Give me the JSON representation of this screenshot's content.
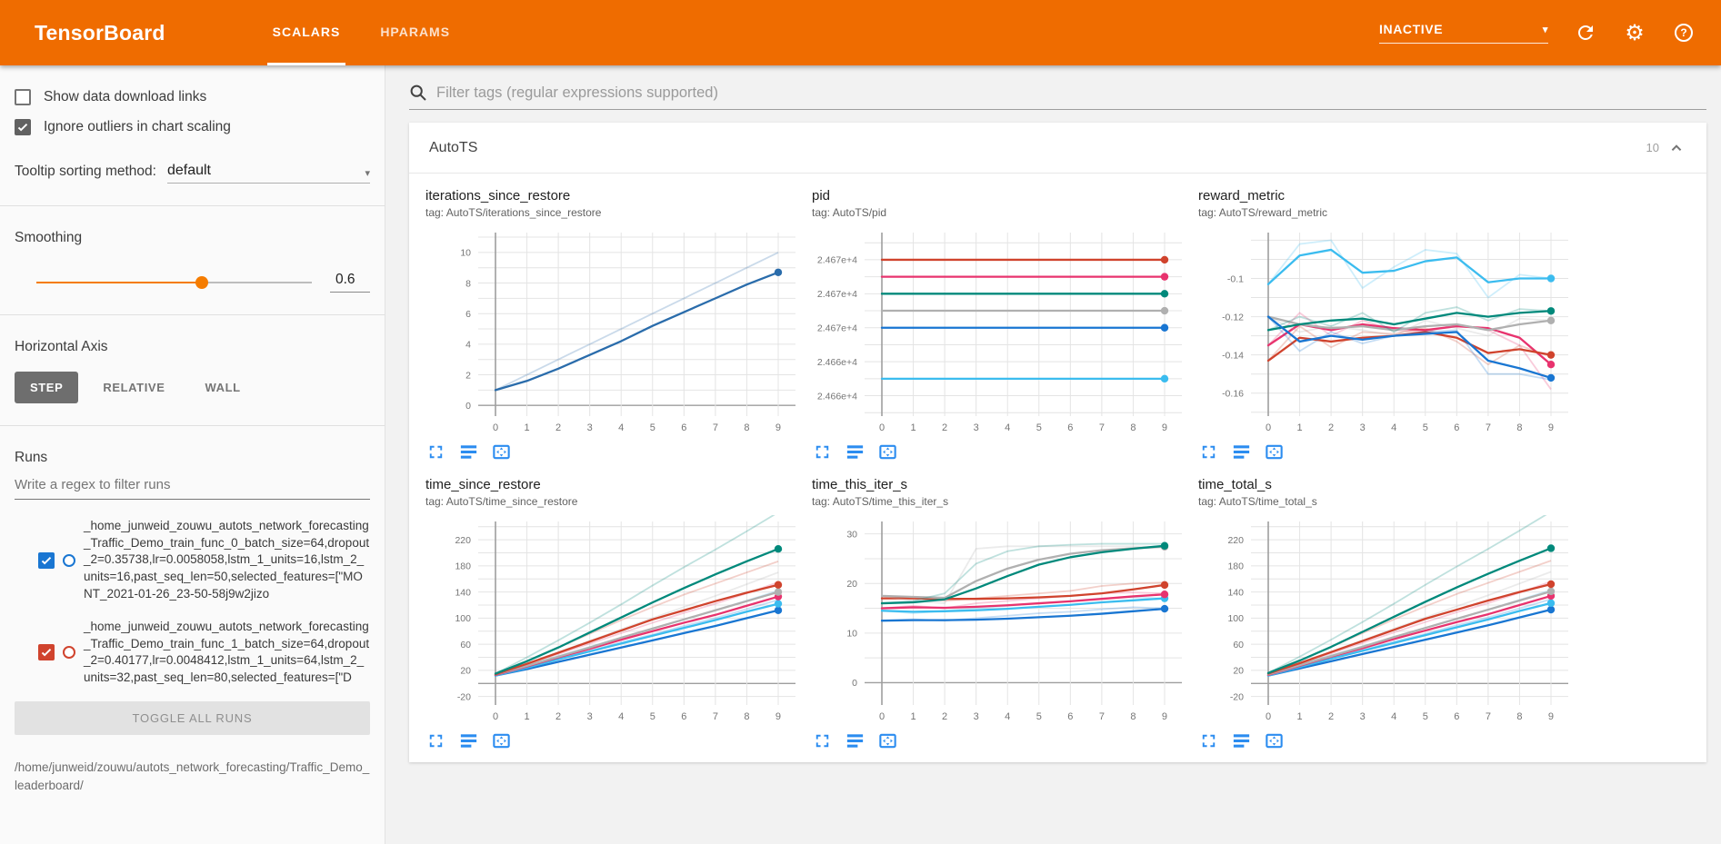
{
  "header": {
    "title": "TensorBoard",
    "tabs": [
      {
        "label": "SCALARS",
        "active": true
      },
      {
        "label": "HPARAMS",
        "active": false
      }
    ],
    "status": "INACTIVE",
    "accent_color": "#ef6c00"
  },
  "sidebar": {
    "checkboxes": [
      {
        "label": "Show data download links",
        "checked": false
      },
      {
        "label": "Ignore outliers in chart scaling",
        "checked": true
      }
    ],
    "tooltip": {
      "label": "Tooltip sorting method:",
      "value": "default"
    },
    "smoothing": {
      "label": "Smoothing",
      "value": "0.6",
      "fraction": 0.6
    },
    "axis": {
      "label": "Horizontal Axis",
      "options": [
        "STEP",
        "RELATIVE",
        "WALL"
      ],
      "selected": "STEP"
    },
    "runs": {
      "label": "Runs",
      "filter_placeholder": "Write a regex to filter runs",
      "items": [
        {
          "checked": true,
          "color": "#1976d2",
          "name": "_home_junweid_zouwu_autots_network_forecasting_Traffic_Demo_train_func_0_batch_size=64,dropout_2=0.35738,lr=0.0058058,lstm_1_units=16,lstm_2_units=16,past_seq_len=50,selected_features=[\"MONT_2021-01-26_23-50-58j9w2jizo"
        },
        {
          "checked": true,
          "color": "#d0432d",
          "name": "_home_junweid_zouwu_autots_network_forecasting_Traffic_Demo_train_func_1_batch_size=64,dropout_2=0.40177,lr=0.0048412,lstm_1_units=64,lstm_2_units=32,past_seq_len=80,selected_features=[\"D"
        }
      ],
      "toggle_all": "TOGGLE ALL RUNS",
      "log_dir": "/home/junweid/zouwu/autots_network_forecasting/Traffic_Demo_leaderboard/"
    }
  },
  "main": {
    "filter_placeholder": "Filter tags (regular expressions supported)",
    "section": {
      "title": "AutoTS",
      "count": "10"
    }
  },
  "chart_data": [
    {
      "type": "line",
      "title": "iterations_since_restore",
      "tag": "tag: AutoTS/iterations_since_restore",
      "xticks": [
        0,
        1,
        2,
        3,
        4,
        5,
        6,
        7,
        8,
        9
      ],
      "yticks": [
        0,
        2,
        4,
        6,
        8,
        10
      ],
      "ylim": [
        -0.7,
        11.3
      ],
      "series": [
        {
          "name": "blue-run",
          "color": "#2a6cab",
          "raw": [
            1,
            2,
            3,
            4,
            5,
            6,
            7,
            8,
            9,
            10
          ],
          "values": [
            1,
            1.6,
            2.4,
            3.3,
            4.2,
            5.2,
            6.1,
            7.0,
            7.9,
            8.7
          ]
        }
      ]
    },
    {
      "type": "line",
      "title": "pid",
      "tag": "tag: AutoTS/pid",
      "xticks": [
        0,
        1,
        2,
        3,
        4,
        5,
        6,
        7,
        8,
        9
      ],
      "yticks": [
        24662,
        24664,
        24666,
        24668,
        24670
      ],
      "ytick_labels": [
        "2.466e+4",
        "2.466e+4",
        "2.467e+4",
        "2.467e+4",
        "2.467e+4"
      ],
      "ylim": [
        24660.8,
        24671.6
      ],
      "series": [
        {
          "name": "red-run",
          "color": "#d0432d",
          "const": 24670
        },
        {
          "name": "pink-run",
          "color": "#e8336e",
          "const": 24669
        },
        {
          "name": "green-run",
          "color": "#00897b",
          "const": 24668
        },
        {
          "name": "gray-run",
          "color": "#b0b0b0",
          "const": 24667
        },
        {
          "name": "blue-run",
          "color": "#1976d2",
          "const": 24666
        },
        {
          "name": "cyan-run",
          "color": "#3bbcef",
          "const": 24663
        }
      ]
    },
    {
      "type": "line",
      "title": "reward_metric",
      "tag": "tag: AutoTS/reward_metric",
      "xticks": [
        0,
        1,
        2,
        3,
        4,
        5,
        6,
        7,
        8,
        9
      ],
      "yticks": [
        -0.16,
        -0.14,
        -0.12,
        -0.1
      ],
      "ylim": [
        -0.172,
        -0.076
      ],
      "series": [
        {
          "name": "pink-run",
          "color": "#e8336e",
          "raw": [
            -0.135,
            -0.118,
            -0.13,
            -0.122,
            -0.127,
            -0.128,
            -0.124,
            -0.127,
            -0.135,
            -0.158
          ],
          "values": [
            -0.135,
            -0.124,
            -0.127,
            -0.124,
            -0.126,
            -0.127,
            -0.125,
            -0.126,
            -0.131,
            -0.145
          ]
        },
        {
          "name": "gray-run",
          "color": "#b0b0b0",
          "raw": [
            -0.12,
            -0.128,
            -0.125,
            -0.127,
            -0.13,
            -0.122,
            -0.126,
            -0.13,
            -0.121,
            -0.122
          ],
          "values": [
            -0.12,
            -0.124,
            -0.126,
            -0.125,
            -0.127,
            -0.125,
            -0.124,
            -0.127,
            -0.124,
            -0.122
          ]
        },
        {
          "name": "green-run",
          "color": "#00897b",
          "raw": [
            -0.127,
            -0.12,
            -0.125,
            -0.118,
            -0.128,
            -0.118,
            -0.115,
            -0.122,
            -0.116,
            -0.117
          ],
          "values": [
            -0.127,
            -0.124,
            -0.122,
            -0.121,
            -0.124,
            -0.121,
            -0.118,
            -0.12,
            -0.118,
            -0.117
          ]
        },
        {
          "name": "red-run",
          "color": "#d0432d",
          "raw": [
            -0.143,
            -0.125,
            -0.136,
            -0.128,
            -0.129,
            -0.126,
            -0.133,
            -0.145,
            -0.135,
            -0.141
          ],
          "values": [
            -0.143,
            -0.131,
            -0.133,
            -0.131,
            -0.13,
            -0.128,
            -0.131,
            -0.139,
            -0.137,
            -0.14
          ]
        },
        {
          "name": "blue-run",
          "color": "#1976d2",
          "raw": [
            -0.12,
            -0.138,
            -0.128,
            -0.134,
            -0.13,
            -0.128,
            -0.127,
            -0.15,
            -0.15,
            -0.153
          ],
          "values": [
            -0.12,
            -0.133,
            -0.13,
            -0.132,
            -0.13,
            -0.129,
            -0.128,
            -0.143,
            -0.147,
            -0.152
          ]
        },
        {
          "name": "cyan-run",
          "color": "#3bbcef",
          "raw": [
            -0.103,
            -0.082,
            -0.08,
            -0.105,
            -0.094,
            -0.085,
            -0.087,
            -0.11,
            -0.098,
            -0.1
          ],
          "values": [
            -0.103,
            -0.088,
            -0.085,
            -0.097,
            -0.096,
            -0.091,
            -0.089,
            -0.102,
            -0.1,
            -0.1
          ]
        }
      ]
    },
    {
      "type": "line",
      "title": "time_since_restore",
      "tag": "tag: AutoTS/time_since_restore",
      "xticks": [
        0,
        1,
        2,
        3,
        4,
        5,
        6,
        7,
        8,
        9
      ],
      "yticks": [
        -20,
        20,
        60,
        100,
        140,
        180,
        220
      ],
      "ylim": [
        -33,
        248
      ],
      "series": [
        {
          "name": "blue-run",
          "color": "#1976d2",
          "raw": [
            12,
            25,
            38,
            50,
            63,
            75,
            88,
            100,
            114,
            128
          ],
          "values": [
            12,
            22,
            33,
            44,
            55,
            66,
            77,
            88,
            100,
            112
          ]
        },
        {
          "name": "cyan-run",
          "color": "#3bbcef",
          "raw": [
            12,
            27,
            42,
            56,
            70,
            84,
            98,
            112,
            127,
            142
          ],
          "values": [
            12,
            24,
            37,
            49,
            61,
            73,
            85,
            97,
            110,
            122
          ]
        },
        {
          "name": "pink-run",
          "color": "#e8336e",
          "raw": [
            13,
            29,
            45,
            61,
            77,
            93,
            108,
            122,
            138,
            155
          ],
          "values": [
            13,
            26,
            40,
            53,
            67,
            80,
            93,
            105,
            119,
            133
          ]
        },
        {
          "name": "gray-run",
          "color": "#b0b0b0",
          "raw": [
            14,
            31,
            48,
            65,
            83,
            100,
            117,
            134,
            152,
            170
          ],
          "values": [
            14,
            27,
            41,
            55,
            70,
            84,
            98,
            112,
            126,
            140
          ]
        },
        {
          "name": "red-run",
          "color": "#d0432d",
          "raw": [
            14,
            34,
            55,
            76,
            97,
            117,
            136,
            153,
            170,
            187
          ],
          "values": [
            14,
            30,
            47,
            64,
            81,
            98,
            112,
            126,
            139,
            151
          ]
        },
        {
          "name": "green-run",
          "color": "#00897b",
          "raw": [
            15,
            40,
            66,
            93,
            121,
            150,
            178,
            205,
            233,
            262
          ],
          "values": [
            15,
            34,
            55,
            78,
            101,
            124,
            146,
            167,
            187,
            206
          ]
        }
      ]
    },
    {
      "type": "line",
      "title": "time_this_iter_s",
      "tag": "tag: AutoTS/time_this_iter_s",
      "xticks": [
        0,
        1,
        2,
        3,
        4,
        5,
        6,
        7,
        8,
        9
      ],
      "yticks": [
        0,
        10,
        20,
        30
      ],
      "ylim": [
        -4.5,
        32.5
      ],
      "series": [
        {
          "name": "blue-run",
          "color": "#1976d2",
          "raw": [
            12.5,
            12.8,
            12.5,
            13,
            13.5,
            14,
            14.3,
            14.8,
            15.2,
            15
          ],
          "values": [
            12.5,
            12.6,
            12.6,
            12.7,
            12.9,
            13.2,
            13.5,
            13.9,
            14.4,
            14.9
          ]
        },
        {
          "name": "cyan-run",
          "color": "#3bbcef",
          "raw": [
            14.5,
            14,
            14.5,
            15,
            15.5,
            16,
            16.5,
            17,
            17.2,
            17
          ],
          "values": [
            14.5,
            14.3,
            14.4,
            14.6,
            14.9,
            15.3,
            15.7,
            16.2,
            16.6,
            17
          ]
        },
        {
          "name": "pink-run",
          "color": "#e8336e",
          "raw": [
            15,
            15.5,
            15,
            16,
            16.5,
            17,
            17.5,
            18,
            18.2,
            18
          ],
          "values": [
            15,
            15.2,
            15.1,
            15.3,
            15.6,
            16,
            16.4,
            16.9,
            17.4,
            17.8
          ]
        },
        {
          "name": "red-run",
          "color": "#d0432d",
          "raw": [
            17,
            17,
            16.5,
            17,
            17.5,
            18,
            18.5,
            19.5,
            20,
            20.2
          ],
          "values": [
            17,
            17,
            16.9,
            16.9,
            17,
            17.2,
            17.5,
            18,
            18.8,
            19.7
          ]
        },
        {
          "name": "gray-run",
          "color": "#b0b0b0",
          "raw": [
            17.5,
            16.5,
            16,
            27,
            27.5,
            27.5,
            27.5,
            27.5,
            27.5,
            27.3
          ],
          "values": [
            17.5,
            17.3,
            17.1,
            20.5,
            23,
            24.8,
            26,
            26.7,
            27.1,
            27.4
          ]
        },
        {
          "name": "green-run",
          "color": "#00897b",
          "raw": [
            16,
            16.5,
            18,
            24,
            26.5,
            27.5,
            27.8,
            28,
            28,
            28
          ],
          "values": [
            16,
            16.2,
            16.8,
            19,
            21.5,
            23.8,
            25.3,
            26.3,
            27,
            27.6
          ]
        }
      ]
    },
    {
      "type": "line",
      "title": "time_total_s",
      "tag": "tag: AutoTS/time_total_s",
      "xticks": [
        0,
        1,
        2,
        3,
        4,
        5,
        6,
        7,
        8,
        9
      ],
      "yticks": [
        -20,
        20,
        60,
        100,
        140,
        180,
        220
      ],
      "ylim": [
        -33,
        248
      ],
      "series": [
        {
          "name": "blue-run",
          "color": "#1976d2",
          "raw": [
            12,
            26,
            39,
            51,
            64,
            76,
            89,
            101,
            115,
            129
          ],
          "values": [
            12,
            23,
            34,
            45,
            56,
            67,
            78,
            89,
            101,
            113
          ]
        },
        {
          "name": "cyan-run",
          "color": "#3bbcef",
          "raw": [
            12,
            28,
            43,
            57,
            71,
            85,
            99,
            113,
            128,
            143
          ],
          "values": [
            12,
            25,
            38,
            50,
            62,
            74,
            86,
            98,
            111,
            123
          ]
        },
        {
          "name": "pink-run",
          "color": "#e8336e",
          "raw": [
            13,
            30,
            46,
            62,
            78,
            94,
            109,
            123,
            139,
            156
          ],
          "values": [
            13,
            27,
            41,
            54,
            68,
            81,
            94,
            106,
            120,
            134
          ]
        },
        {
          "name": "gray-run",
          "color": "#b0b0b0",
          "raw": [
            14,
            32,
            49,
            66,
            84,
            101,
            118,
            135,
            153,
            171
          ],
          "values": [
            14,
            28,
            42,
            56,
            71,
            85,
            99,
            113,
            127,
            141
          ]
        },
        {
          "name": "red-run",
          "color": "#d0432d",
          "raw": [
            15,
            35,
            56,
            77,
            98,
            118,
            137,
            154,
            171,
            188
          ],
          "values": [
            15,
            31,
            48,
            65,
            82,
            99,
            113,
            127,
            140,
            152
          ]
        },
        {
          "name": "green-run",
          "color": "#00897b",
          "raw": [
            16,
            41,
            67,
            94,
            122,
            151,
            179,
            206,
            234,
            263
          ],
          "values": [
            16,
            35,
            56,
            79,
            102,
            125,
            147,
            168,
            188,
            207
          ]
        }
      ]
    }
  ]
}
